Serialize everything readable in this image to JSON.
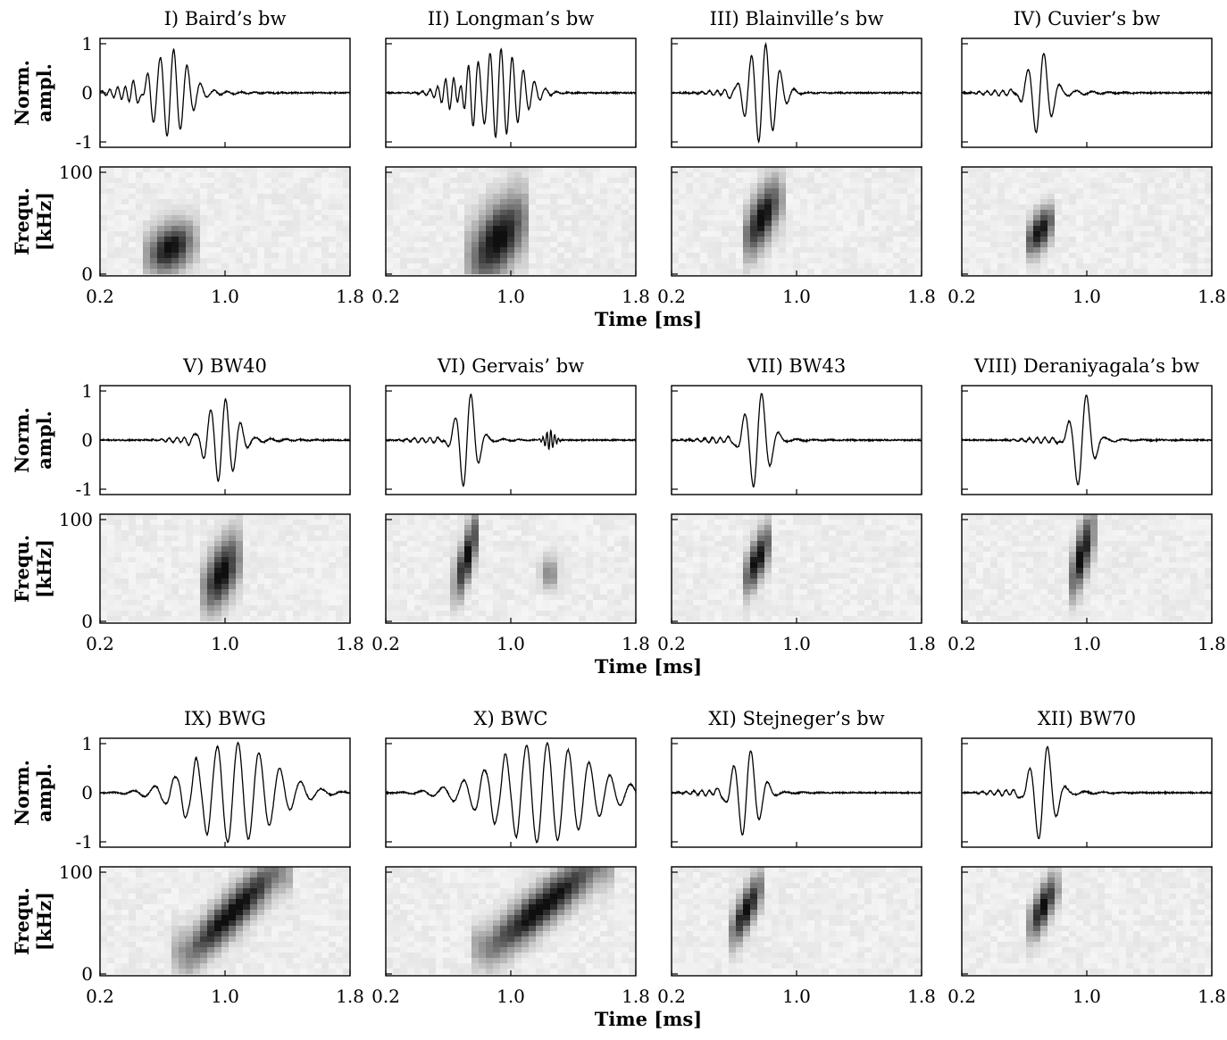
{
  "chart_data": {
    "type": "multi-panel waveform and spectrogram",
    "panel_titles": [
      "I) Baird’s bw",
      "II) Longman’s bw",
      "III) Blainville’s bw",
      "IV) Cuvier’s bw",
      "V) BW40",
      "VI) Gervais’ bw",
      "VII) BW43",
      "VIII) Deraniyagala’s bw",
      "IX) BWG",
      "X) BWC",
      "XI) Stejneger’s bw",
      "XII) BW70"
    ],
    "waveform_ylabel": [
      "Norm.",
      "ampl."
    ],
    "waveform_yticks": [
      "1",
      "0",
      "-1"
    ],
    "waveform_ylim": [
      -1,
      1
    ],
    "spectrogram_ylabel": [
      "Frequ.",
      "[kHz]"
    ],
    "spectrogram_yticks": [
      "100",
      "0"
    ],
    "spectrogram_ylim": [
      0,
      100
    ],
    "xticks": [
      "0.2",
      "1.0",
      "1.8"
    ],
    "xlim": [
      0.2,
      1.8
    ],
    "xlabel": "Time [ms]",
    "clicks": [
      {
        "center": 0.65,
        "width": 0.11,
        "freq": 0.58,
        "peak": 0.83,
        "ring": 0.65,
        "precursor": 0.15,
        "chirp": [
          18,
          30
        ],
        "spread": 0.45
      },
      {
        "center": 0.92,
        "width": 0.14,
        "freq": 0.48,
        "peak": 0.83,
        "ring": 0.2,
        "precursor": 0.3,
        "chirp": [
          15,
          50
        ],
        "spread": 0.9
      },
      {
        "center": 0.78,
        "width": 0.09,
        "freq": 0.62,
        "peak": 0.95,
        "ring": 0.15,
        "precursor": 0.05,
        "chirp": [
          35,
          70
        ],
        "spread": 0.6
      },
      {
        "center": 0.7,
        "width": 0.07,
        "freq": 0.7,
        "peak": 0.8,
        "ring": 0.5,
        "precursor": 0.05,
        "chirp": [
          30,
          50
        ],
        "spread": 0.3
      },
      {
        "center": 0.98,
        "width": 0.09,
        "freq": 0.65,
        "peak": 0.8,
        "ring": 0.5,
        "precursor": 0.05,
        "chirp": [
          30,
          60
        ],
        "spread": 0.7
      },
      {
        "center": 0.72,
        "width": 0.06,
        "freq": 0.7,
        "peak": 0.95,
        "ring": 0.2,
        "precursor": 0.05,
        "chirp": [
          35,
          85
        ],
        "spread": 0.5,
        "echo": {
          "center": 1.25,
          "amp": 0.18
        }
      },
      {
        "center": 0.75,
        "width": 0.07,
        "freq": 0.75,
        "peak": 0.95,
        "ring": 0.2,
        "precursor": 0.05,
        "chirp": [
          40,
          75
        ],
        "spread": 0.4
      },
      {
        "center": 0.97,
        "width": 0.06,
        "freq": 0.8,
        "peak": 0.95,
        "ring": 0.2,
        "precursor": 0.05,
        "chirp": [
          40,
          85
        ],
        "spread": 0.6
      },
      {
        "center": 1.05,
        "width": 0.25,
        "freq": 0.9,
        "peak": 0.95,
        "ring": 0.2,
        "precursor": 0.05,
        "chirp": [
          20,
          95
        ],
        "spread": 0.4
      },
      {
        "center": 1.2,
        "width": 0.3,
        "freq": 0.9,
        "peak": 0.95,
        "ring": 0.2,
        "precursor": 0.05,
        "chirp": [
          25,
          100
        ],
        "spread": 0.4
      },
      {
        "center": 0.68,
        "width": 0.08,
        "freq": 0.75,
        "peak": 0.85,
        "ring": 0.2,
        "precursor": 0.05,
        "chirp": [
          40,
          80
        ],
        "spread": 0.35
      },
      {
        "center": 0.72,
        "width": 0.07,
        "freq": 0.8,
        "peak": 0.95,
        "ring": 0.3,
        "precursor": 0.05,
        "chirp": [
          45,
          80
        ],
        "spread": 0.35
      }
    ]
  }
}
